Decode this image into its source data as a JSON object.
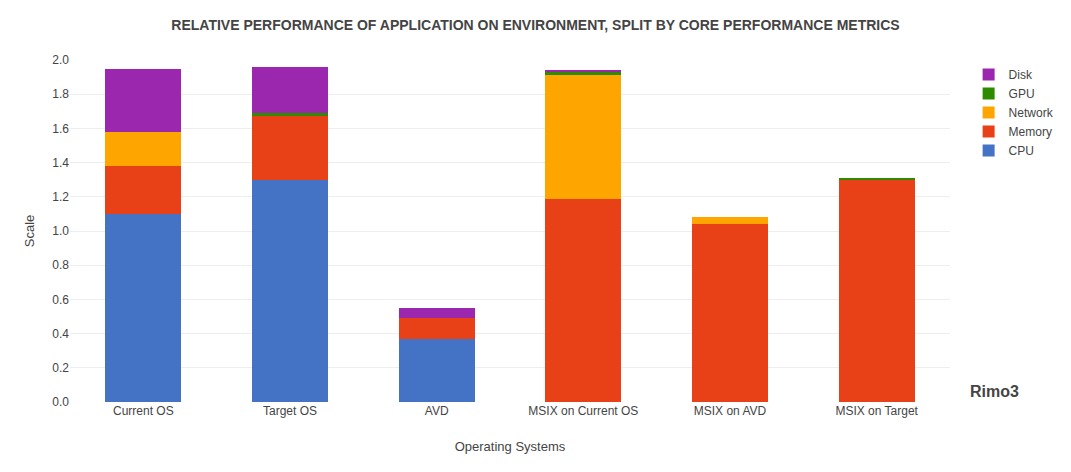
{
  "chart_data": {
    "type": "bar",
    "stacked": true,
    "title": "RELATIVE PERFORMANCE OF APPLICATION ON ENVIRONMENT, SPLIT BY CORE PERFORMANCE METRICS",
    "x_label": "Operating Systems",
    "y_label": "Scale",
    "categories": [
      "Current OS",
      "Target OS",
      "AVD",
      "MSIX on Current OS",
      "MSIX on AVD",
      "MSIX on Target"
    ],
    "series": [
      {
        "name": "CPU",
        "color": "#4472C4",
        "values": [
          1.1,
          1.3,
          0.37,
          0.0,
          0.0,
          0.0
        ]
      },
      {
        "name": "Memory",
        "color": "#E84118",
        "values": [
          0.28,
          0.37,
          0.12,
          1.19,
          1.04,
          1.3
        ]
      },
      {
        "name": "Network",
        "color": "#FFA500",
        "values": [
          0.2,
          0.0,
          0.0,
          0.72,
          0.04,
          0.0
        ]
      },
      {
        "name": "GPU",
        "color": "#2E8B00",
        "values": [
          0.0,
          0.02,
          0.0,
          0.02,
          0.0,
          0.01
        ]
      },
      {
        "name": "Disk",
        "color": "#9B27AF",
        "values": [
          0.37,
          0.27,
          0.06,
          0.01,
          0.0,
          0.0
        ]
      }
    ],
    "ylim": [
      0,
      2.0
    ],
    "yticks": [
      {
        "value": 0.0,
        "label": "0.0"
      },
      0.2,
      0.4,
      0.6,
      0.8,
      {
        "value": 1.0,
        "label": "1.0"
      },
      1.2,
      1.4,
      1.6,
      1.8,
      {
        "value": 2.0,
        "label": "2.0"
      }
    ],
    "grid": true,
    "legend": "upper right",
    "annotations": [
      "Rimo3"
    ]
  }
}
